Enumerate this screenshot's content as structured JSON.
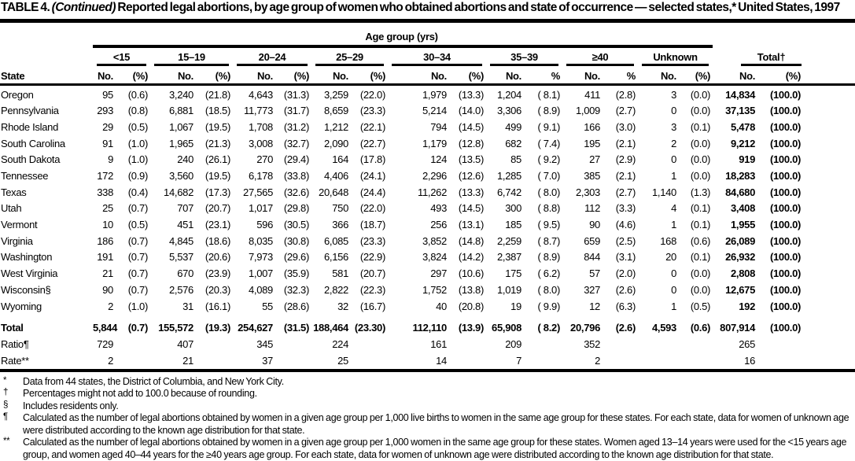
{
  "colors": {
    "text": "#000000",
    "background": "#ffffff"
  },
  "title": {
    "prefix": "TABLE 4. ",
    "continued": "(Continued)",
    "rest": " Reported legal abortions, by age group of women who obtained abortions and state of occurrence — selected states,* United States, 1997"
  },
  "header": {
    "age_group_title": "Age group (yrs)",
    "state_label": "State",
    "groups": [
      {
        "label": "<15",
        "no": "No.",
        "pct": "(%)"
      },
      {
        "label": "15–19",
        "no": "No.",
        "pct": "(%)"
      },
      {
        "label": "20–24",
        "no": "No.",
        "pct": "(%)"
      },
      {
        "label": "25–29",
        "no": "No.",
        "pct": "(%)"
      },
      {
        "label": "30–34",
        "no": "No.",
        "pct": "(%)"
      },
      {
        "label": "35–39",
        "no": "No.",
        "pct": "%"
      },
      {
        "label": "≥40",
        "no": "No.",
        "pct": "%"
      },
      {
        "label": "Unknown",
        "no": "No.",
        "pct": "(%)"
      },
      {
        "label": "Total†",
        "no": "No.",
        "pct": "(%)"
      }
    ]
  },
  "rows": [
    {
      "label": "Oregon",
      "cells": [
        "95",
        "(0.6)",
        "3,240",
        "(21.8)",
        "4,643",
        "(31.3)",
        "3,259",
        "(22.0)",
        "1,979",
        "(13.3)",
        "1,204",
        "( 8.1)",
        "411",
        "(2.8)",
        "3",
        "(0.0)",
        "14,834",
        "(100.0)"
      ]
    },
    {
      "label": "Pennsylvania",
      "cells": [
        "293",
        "(0.8)",
        "6,881",
        "(18.5)",
        "11,773",
        "(31.7)",
        "8,659",
        "(23.3)",
        "5,214",
        "(14.0)",
        "3,306",
        "( 8.9)",
        "1,009",
        "(2.7)",
        "0",
        "(0.0)",
        "37,135",
        "(100.0)"
      ]
    },
    {
      "label": "Rhode Island",
      "cells": [
        "29",
        "(0.5)",
        "1,067",
        "(19.5)",
        "1,708",
        "(31.2)",
        "1,212",
        "(22.1)",
        "794",
        "(14.5)",
        "499",
        "( 9.1)",
        "166",
        "(3.0)",
        "3",
        "(0.1)",
        "5,478",
        "(100.0)"
      ]
    },
    {
      "label": "South Carolina",
      "cells": [
        "91",
        "(1.0)",
        "1,965",
        "(21.3)",
        "3,008",
        "(32.7)",
        "2,090",
        "(22.7)",
        "1,179",
        "(12.8)",
        "682",
        "( 7.4)",
        "195",
        "(2.1)",
        "2",
        "(0.0)",
        "9,212",
        "(100.0)"
      ]
    },
    {
      "label": "South Dakota",
      "cells": [
        "9",
        "(1.0)",
        "240",
        "(26.1)",
        "270",
        "(29.4)",
        "164",
        "(17.8)",
        "124",
        "(13.5)",
        "85",
        "( 9.2)",
        "27",
        "(2.9)",
        "0",
        "(0.0)",
        "919",
        "(100.0)"
      ]
    },
    {
      "label": "Tennessee",
      "cells": [
        "172",
        "(0.9)",
        "3,560",
        "(19.5)",
        "6,178",
        "(33.8)",
        "4,406",
        "(24.1)",
        "2,296",
        "(12.6)",
        "1,285",
        "( 7.0)",
        "385",
        "(2.1)",
        "1",
        "(0.0)",
        "18,283",
        "(100.0)"
      ]
    },
    {
      "label": "Texas",
      "cells": [
        "338",
        "(0.4)",
        "14,682",
        "(17.3)",
        "27,565",
        "(32.6)",
        "20,648",
        "(24.4)",
        "11,262",
        "(13.3)",
        "6,742",
        "( 8.0)",
        "2,303",
        "(2.7)",
        "1,140",
        "(1.3)",
        "84,680",
        "(100.0)"
      ]
    },
    {
      "label": "Utah",
      "cells": [
        "25",
        "(0.7)",
        "707",
        "(20.7)",
        "1,017",
        "(29.8)",
        "750",
        "(22.0)",
        "493",
        "(14.5)",
        "300",
        "( 8.8)",
        "112",
        "(3.3)",
        "4",
        "(0.1)",
        "3,408",
        "(100.0)"
      ]
    },
    {
      "label": "Vermont",
      "cells": [
        "10",
        "(0.5)",
        "451",
        "(23.1)",
        "596",
        "(30.5)",
        "366",
        "(18.7)",
        "256",
        "(13.1)",
        "185",
        "( 9.5)",
        "90",
        "(4.6)",
        "1",
        "(0.1)",
        "1,955",
        "(100.0)"
      ]
    },
    {
      "label": "Virginia",
      "cells": [
        "186",
        "(0.7)",
        "4,845",
        "(18.6)",
        "8,035",
        "(30.8)",
        "6,085",
        "(23.3)",
        "3,852",
        "(14.8)",
        "2,259",
        "( 8.7)",
        "659",
        "(2.5)",
        "168",
        "(0.6)",
        "26,089",
        "(100.0)"
      ]
    },
    {
      "label": "Washington",
      "cells": [
        "191",
        "(0.7)",
        "5,537",
        "(20.6)",
        "7,973",
        "(29.6)",
        "6,156",
        "(22.9)",
        "3,824",
        "(14.2)",
        "2,387",
        "( 8.9)",
        "844",
        "(3.1)",
        "20",
        "(0.1)",
        "26,932",
        "(100.0)"
      ]
    },
    {
      "label": "West Virginia",
      "cells": [
        "21",
        "(0.7)",
        "670",
        "(23.9)",
        "1,007",
        "(35.9)",
        "581",
        "(20.7)",
        "297",
        "(10.6)",
        "175",
        "( 6.2)",
        "57",
        "(2.0)",
        "0",
        "(0.0)",
        "2,808",
        "(100.0)"
      ]
    },
    {
      "label": "Wisconsin§",
      "cells": [
        "90",
        "(0.7)",
        "2,576",
        "(20.3)",
        "4,089",
        "(32.3)",
        "2,822",
        "(22.3)",
        "1,752",
        "(13.8)",
        "1,019",
        "( 8.0)",
        "327",
        "(2.6)",
        "0",
        "(0.0)",
        "12,675",
        "(100.0)"
      ]
    },
    {
      "label": "Wyoming",
      "cells": [
        "2",
        "(1.0)",
        "31",
        "(16.1)",
        "55",
        "(28.6)",
        "32",
        "(16.7)",
        "40",
        "(20.8)",
        "19",
        "( 9.9)",
        "12",
        "(6.3)",
        "1",
        "(0.5)",
        "192",
        "(100.0)"
      ]
    }
  ],
  "summary": {
    "total": {
      "label": "Total",
      "cells": [
        "5,844",
        "(0.7)",
        "155,572",
        "(19.3)",
        "254,627",
        "(31.5)",
        "188,464",
        "(23.30)",
        "112,110",
        "(13.9)",
        "65,908",
        "( 8.2)",
        "20,796",
        "(2.6)",
        "4,593",
        "(0.6)",
        "807,914",
        "(100.0)"
      ]
    },
    "ratio": {
      "label": "Ratio¶",
      "cells": [
        "729",
        "",
        "407",
        "",
        "345",
        "",
        "224",
        "",
        "161",
        "",
        "209",
        "",
        "352",
        "",
        "",
        "",
        "265",
        ""
      ]
    },
    "rate": {
      "label": "Rate**",
      "cells": [
        "2",
        "",
        "21",
        "",
        "37",
        "",
        "25",
        "",
        "14",
        "",
        "7",
        "",
        "2",
        "",
        "",
        "",
        "16",
        ""
      ]
    }
  },
  "footnotes": [
    {
      "marker": "*",
      "text": "Data from 44 states, the District of Columbia, and New York City."
    },
    {
      "marker": "†",
      "text": "Percentages might not add to 100.0 because of rounding."
    },
    {
      "marker": "§",
      "text": "Includes residents only."
    },
    {
      "marker": "¶",
      "text": "Calculated as the number of legal abortions obtained by women in a given age group per 1,000 live births to women in the same age group for these states. For each state, data for women of unknown age were distributed according to the known age distribution for that state."
    },
    {
      "marker": "**",
      "text": "Calculated as the number of legal abortions obtained by women in a given age group per 1,000 women in the same age group for these states. Women aged 13–14 years were used for the <15 years age group, and women aged 40–44 years for the ≥40 years age group. For each state, data for women of unknown age were distributed according to the known age distribution for that state."
    }
  ]
}
